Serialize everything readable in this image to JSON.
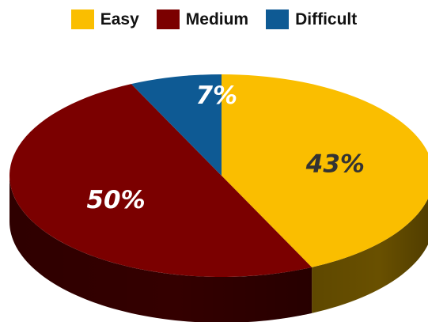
{
  "chart_data": {
    "type": "pie",
    "style": "3d",
    "legend_position": "top",
    "title": "",
    "slices": [
      {
        "name": "Easy",
        "value": 43,
        "label": "43%",
        "color": "#FABE00",
        "label_color": "#333333"
      },
      {
        "name": "Medium",
        "value": 50,
        "label": "50%",
        "color": "#7B0000",
        "label_color": "#FFFFFF"
      },
      {
        "name": "Difficult",
        "value": 7,
        "label": "7%",
        "color": "#0E5A94",
        "label_color": "#FFFFFF"
      }
    ]
  }
}
